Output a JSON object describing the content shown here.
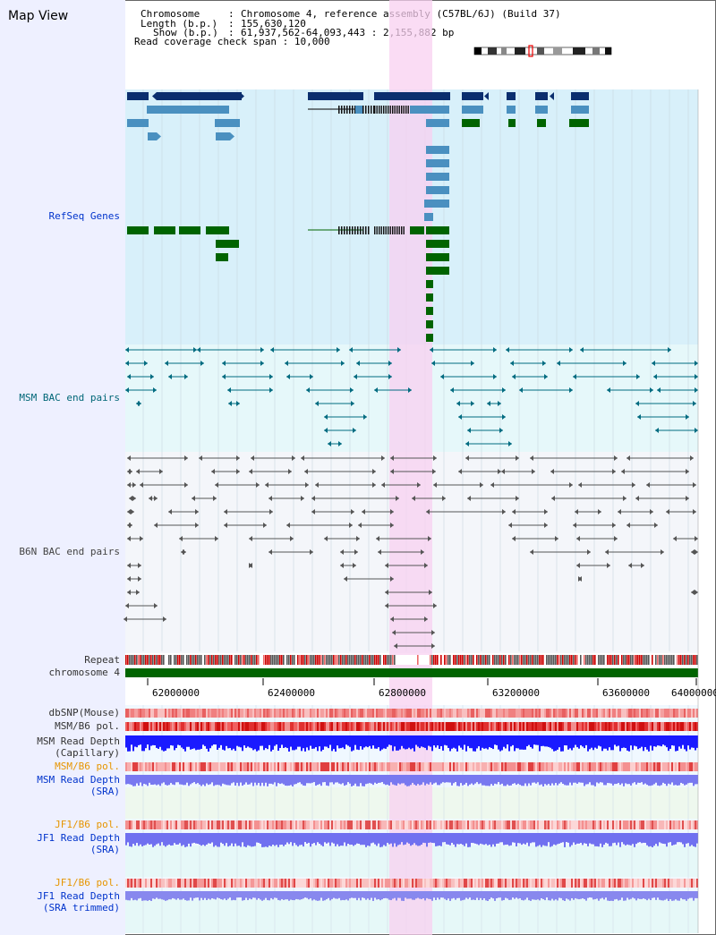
{
  "map_title": "Map View",
  "info": {
    "chromosome_label": "Chromosome",
    "chromosome_value": "Chromosome 4, reference assembly (C57BL/6J) (Build 37)",
    "length_label": "Length (b.p.)",
    "length_value": "155,630,120",
    "show_label": "Show (b.p.)",
    "show_value": "61,937,562-64,093,443 : 2,155,882 bp",
    "coverage_label": "Read coverage check span",
    "coverage_value": "10,000"
  },
  "tracks": {
    "refseq": "RefSeq Genes",
    "msm_bac": "MSM BAC end pairs",
    "b6n_bac": "B6N BAC end pairs",
    "repeat": "Repeat",
    "chromosome": "chromosome 4",
    "dbsnp": "dbSNP(Mouse)",
    "msm_b6_pol_1": "MSM/B6 pol.",
    "msm_read_depth_cap": "MSM Read Depth",
    "msm_read_depth_cap_sub": "(Capillary)",
    "msm_b6_pol_2": "MSM/B6 pol.",
    "msm_read_depth_sra": "MSM Read Depth",
    "msm_read_depth_sra_sub": "(SRA)",
    "jf1_b6_pol_1": "JF1/B6 pol.",
    "jf1_read_depth_sra": "JF1 Read Depth",
    "jf1_read_depth_sra_sub": "(SRA)",
    "jf1_b6_pol_2": "JF1/B6 pol.",
    "jf1_read_depth_trim": "JF1 Read Depth",
    "jf1_read_depth_trim_sub": "(SRA trimmed)"
  },
  "axis_ticks": [
    "62000000",
    "62400000",
    "62800000",
    "63200000",
    "63600000",
    "64000000"
  ],
  "colors": {
    "refseq_bg": "#d8f0fa",
    "msm_bac_bg": "#e6f8fa",
    "b6n_bac_bg": "#f4f6fa",
    "highlight": "#f8d0f0",
    "gene_dark": "#0b2e6e",
    "gene_mid": "#4a90c0",
    "gene_green": "#006400",
    "msm_line": "#006b80",
    "b6n_line": "#555555",
    "chromosome_bar": "#006400"
  }
}
